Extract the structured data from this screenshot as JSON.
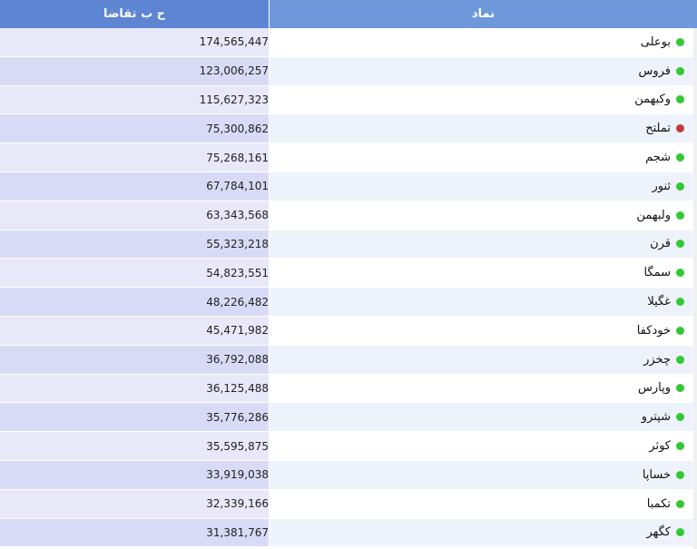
{
  "header": {
    "name_label": "نماد",
    "demand_label": "ح ب تقاضا"
  },
  "colors": {
    "header_bg": "#6f98da",
    "status_positive": "#32c832",
    "status_negative": "#c43a3a"
  },
  "rows": [
    {
      "symbol": "بوعلی",
      "demand": "174,565,447",
      "status": "green"
    },
    {
      "symbol": "فروس",
      "demand": "123,006,257",
      "status": "green"
    },
    {
      "symbol": "وکبهمن",
      "demand": "115,627,323",
      "status": "green"
    },
    {
      "symbol": "تملتح",
      "demand": "75,300,862",
      "status": "red"
    },
    {
      "symbol": "شجم",
      "demand": "75,268,161",
      "status": "green"
    },
    {
      "symbol": "ثنور",
      "demand": "67,784,101",
      "status": "green"
    },
    {
      "symbol": "ولبهمن",
      "demand": "63,343,568",
      "status": "green"
    },
    {
      "symbol": "قرن",
      "demand": "55,323,218",
      "status": "green"
    },
    {
      "symbol": "سمگا",
      "demand": "54,823,551",
      "status": "green"
    },
    {
      "symbol": "غگیلا",
      "demand": "48,226,482",
      "status": "green"
    },
    {
      "symbol": "خودکفا",
      "demand": "45,471,982",
      "status": "green"
    },
    {
      "symbol": "چخزر",
      "demand": "36,792,088",
      "status": "green"
    },
    {
      "symbol": "وپارس",
      "demand": "36,125,488",
      "status": "green"
    },
    {
      "symbol": "شپترو",
      "demand": "35,776,286",
      "status": "green"
    },
    {
      "symbol": "کوثر",
      "demand": "35,595,875",
      "status": "green"
    },
    {
      "symbol": "خساپا",
      "demand": "33,919,038",
      "status": "green"
    },
    {
      "symbol": "تکمبا",
      "demand": "32,339,166",
      "status": "green"
    },
    {
      "symbol": "کگهر",
      "demand": "31,381,767",
      "status": "green"
    }
  ]
}
